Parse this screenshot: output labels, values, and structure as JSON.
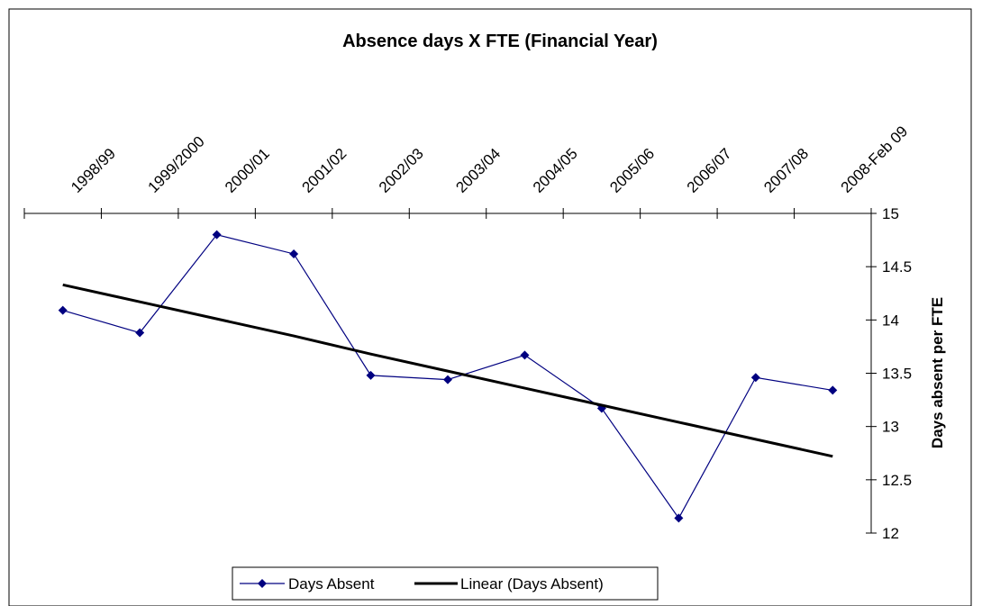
{
  "chart_data": {
    "type": "line",
    "title": "Absence days X FTE (Financial Year)",
    "y_label": "Days absent per FTE",
    "categories": [
      "1998/99",
      "1999/2000",
      "2000/01",
      "2001/02",
      "2002/03",
      "2003/04",
      "2004/05",
      "2005/06",
      "2006/07",
      "2007/08",
      "2008-Feb 09"
    ],
    "series": [
      {
        "name": "Days Absent",
        "color": "#000080",
        "values": [
          14.09,
          13.88,
          14.8,
          14.62,
          13.48,
          13.44,
          13.67,
          13.17,
          12.14,
          13.46,
          13.34
        ]
      },
      {
        "name": "Linear (Days Absent)",
        "color": "#000000",
        "values": [
          14.33,
          14.17,
          14.01,
          13.85,
          13.68,
          13.52,
          13.36,
          13.2,
          13.04,
          12.88,
          12.72
        ]
      }
    ],
    "ylim": [
      12,
      15
    ],
    "yticks": [
      12,
      12.5,
      13,
      13.5,
      14,
      14.5,
      15
    ],
    "y_axis_side": "right",
    "x_axis_side": "top",
    "grid": false,
    "legend": "bottom"
  }
}
